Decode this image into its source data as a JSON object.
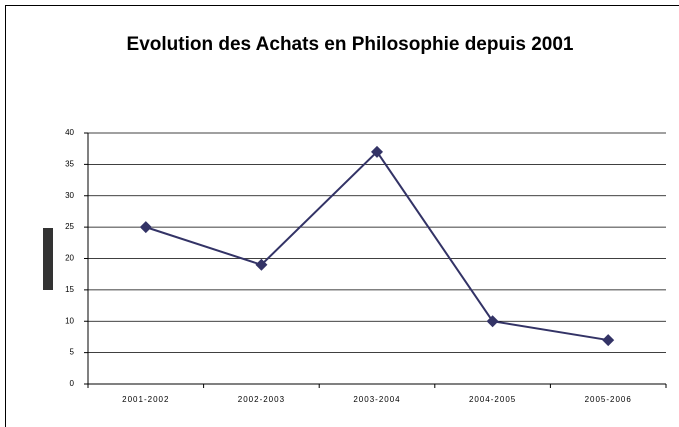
{
  "chart_data": {
    "type": "line",
    "title": "Evolution des Achats en Philosophie depuis 2001",
    "categories": [
      "2001-2002",
      "2002-2003",
      "2003-2004",
      "2004-2005",
      "2005-2006"
    ],
    "values": [
      25,
      19,
      37,
      10,
      7
    ],
    "color": "#333366",
    "ylim": [
      0,
      40
    ],
    "yticks": [
      0,
      5,
      10,
      15,
      20,
      25,
      30,
      35,
      40
    ],
    "grid": true
  }
}
